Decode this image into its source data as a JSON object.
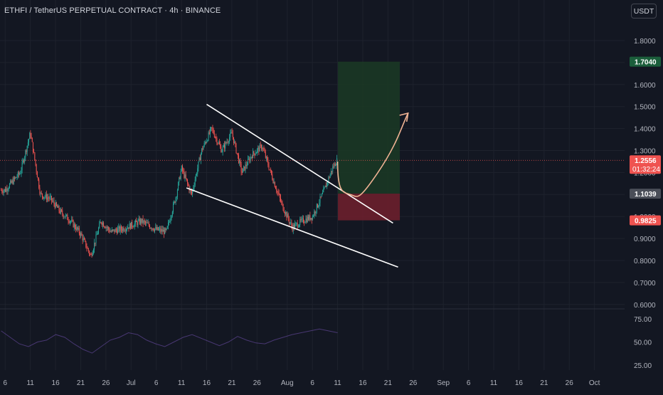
{
  "header": {
    "title": "ETHFI / TetherUS PERPETUAL CONTRACT · 4h · BINANCE",
    "currency": "USDT"
  },
  "colors": {
    "background": "#131722",
    "up": "#26a69a",
    "down": "#ef5350",
    "text": "#d1d4dc",
    "grid": "#1e222d",
    "target_zone": "#1b3a25",
    "stop_zone": "#6b1f2c",
    "projection_arrow": "#f0b394",
    "trend_lines": "#ffffff",
    "rsi_line": "#7e57c2"
  },
  "chart_data": {
    "type": "candlestick",
    "symbol": "ETHFI / TetherUS PERPETUAL CONTRACT",
    "timeframe": "4h",
    "exchange": "BINANCE",
    "price_axis": {
      "ticks": [
        "1.8000",
        "1.7000",
        "1.6000",
        "1.5000",
        "1.4000",
        "1.3000",
        "1.2000",
        "1.1000",
        "1.0000",
        "0.9000",
        "0.8000",
        "0.7000",
        "0.6000"
      ],
      "ylim": [
        0.6,
        1.85
      ]
    },
    "price_labels": [
      {
        "value": "1.7040",
        "kind": "target"
      },
      {
        "value": "1.2556",
        "countdown": "01:32:24",
        "kind": "last"
      },
      {
        "value": "1.1039",
        "kind": "entry"
      },
      {
        "value": "0.9825",
        "kind": "stop"
      }
    ],
    "time_axis": [
      "6",
      "11",
      "16",
      "21",
      "26",
      "Jul",
      "6",
      "11",
      "16",
      "21",
      "26",
      "Aug",
      "6",
      "11",
      "16",
      "21",
      "26",
      "Sep",
      "6",
      "11",
      "16",
      "21",
      "26",
      "Oct"
    ],
    "trajectory": [
      {
        "date": "Jun 6",
        "close": 1.12
      },
      {
        "date": "Jun 9",
        "close": 1.2
      },
      {
        "date": "Jun 11",
        "close": 1.38
      },
      {
        "date": "Jun 13",
        "close": 1.1
      },
      {
        "date": "Jun 15",
        "close": 1.08
      },
      {
        "date": "Jun 17",
        "close": 1.02
      },
      {
        "date": "Jun 19",
        "close": 0.98
      },
      {
        "date": "Jun 21",
        "close": 0.92
      },
      {
        "date": "Jun 23",
        "close": 0.82
      },
      {
        "date": "Jun 25",
        "close": 0.98
      },
      {
        "date": "Jun 27",
        "close": 0.93
      },
      {
        "date": "Jun 30",
        "close": 0.95
      },
      {
        "date": "Jul 3",
        "close": 0.98
      },
      {
        "date": "Jul 6",
        "close": 0.94
      },
      {
        "date": "Jul 8",
        "close": 0.93
      },
      {
        "date": "Jul 10",
        "close": 1.1
      },
      {
        "date": "Jul 11",
        "close": 1.22
      },
      {
        "date": "Jul 13",
        "close": 1.1
      },
      {
        "date": "Jul 15",
        "close": 1.3
      },
      {
        "date": "Jul 17",
        "close": 1.4
      },
      {
        "date": "Jul 19",
        "close": 1.3
      },
      {
        "date": "Jul 21",
        "close": 1.38
      },
      {
        "date": "Jul 23",
        "close": 1.2
      },
      {
        "date": "Jul 25",
        "close": 1.28
      },
      {
        "date": "Jul 27",
        "close": 1.32
      },
      {
        "date": "Jul 29",
        "close": 1.18
      },
      {
        "date": "Jul 31",
        "close": 1.05
      },
      {
        "date": "Aug 2",
        "close": 0.95
      },
      {
        "date": "Aug 4",
        "close": 0.98
      },
      {
        "date": "Aug 6",
        "close": 1.0
      },
      {
        "date": "Aug 8",
        "close": 1.1
      },
      {
        "date": "Aug 10",
        "close": 1.22
      },
      {
        "date": "Aug 11",
        "close": 1.26
      }
    ],
    "drawings": {
      "channel_upper": [
        {
          "date": "Jul 16",
          "price": 1.51
        },
        {
          "date": "Aug 22",
          "price": 0.97
        }
      ],
      "channel_lower": [
        {
          "date": "Jul 12",
          "price": 1.13
        },
        {
          "date": "Aug 23",
          "price": 0.77
        }
      ],
      "long_position": {
        "entry": 1.1039,
        "target": 1.704,
        "stop": 0.9825
      },
      "projection": [
        {
          "date": "Aug 11",
          "price": 1.25
        },
        {
          "date": "Aug 12",
          "price": 1.11
        },
        {
          "date": "Aug 15",
          "price": 1.09
        },
        {
          "date": "Aug 19",
          "price": 1.2
        },
        {
          "date": "Aug 25",
          "price": 1.47
        }
      ]
    },
    "indicator": {
      "ticks": [
        "75.00",
        "50.00",
        "25.00"
      ],
      "ylim": [
        15,
        85
      ],
      "values": [
        62,
        55,
        48,
        45,
        50,
        52,
        58,
        55,
        48,
        42,
        38,
        45,
        52,
        55,
        60,
        58,
        52,
        48,
        45,
        50,
        55,
        58,
        54,
        50,
        46,
        50,
        56,
        52,
        49,
        48,
        52,
        55,
        58,
        60,
        62,
        64,
        62,
        60
      ]
    }
  }
}
